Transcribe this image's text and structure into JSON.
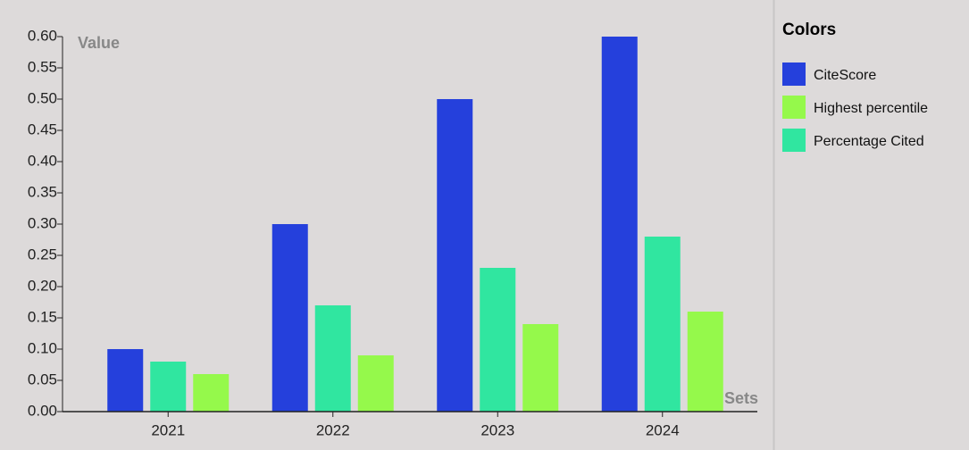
{
  "chart_data": {
    "type": "bar",
    "x_label": "Sets",
    "y_label": "Value",
    "categories": [
      "2021",
      "2022",
      "2023",
      "2024"
    ],
    "series": [
      {
        "name": "CiteScore",
        "color": "#2540dc",
        "values": [
          0.1,
          0.3,
          0.5,
          0.6
        ]
      },
      {
        "name": "Percentage Cited",
        "color": "#30e6a0",
        "values": [
          0.08,
          0.17,
          0.23,
          0.28
        ]
      },
      {
        "name": "Highest percentile",
        "color": "#95f94b",
        "values": [
          0.06,
          0.09,
          0.14,
          0.16
        ]
      }
    ],
    "legend_title": "Colors",
    "legend": [
      "CiteScore",
      "Highest percentile",
      "Percentage Cited"
    ],
    "ylim": [
      0,
      0.6
    ],
    "yticks": [
      {
        "value": 0,
        "label": "0.00"
      },
      {
        "value": 0.05,
        "label": "0.05"
      },
      {
        "value": 0.1,
        "label": "0.10"
      },
      {
        "value": 0.15,
        "label": "0.15"
      },
      {
        "value": 0.2,
        "label": "0.20"
      },
      {
        "value": 0.25,
        "label": "0.25"
      },
      {
        "value": 0.3,
        "label": "0.30"
      },
      {
        "value": 0.35,
        "label": "0.35"
      },
      {
        "value": 0.4,
        "label": "0.40"
      },
      {
        "value": 0.45,
        "label": "0.45"
      },
      {
        "value": 0.5,
        "label": "0.50"
      },
      {
        "value": 0.55,
        "label": "0.55"
      },
      {
        "value": 0.6,
        "label": "0.60"
      }
    ]
  }
}
